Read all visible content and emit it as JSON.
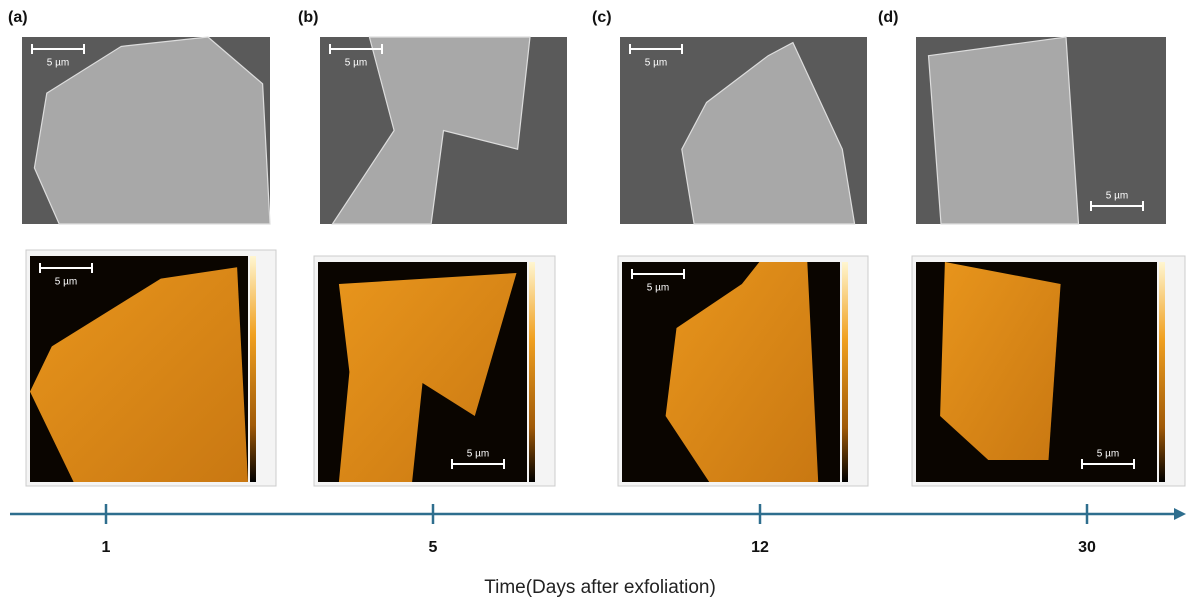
{
  "panels": [
    {
      "label": "(a)",
      "sem_scale": "5 µm",
      "afm_scale": "5 µm"
    },
    {
      "label": "(b)",
      "sem_scale": "5 µm",
      "afm_scale": "5 µm"
    },
    {
      "label": "(c)",
      "sem_scale": "5 µm",
      "afm_scale": "5 µm"
    },
    {
      "label": "(d)",
      "sem_scale": "5 µm",
      "afm_scale": "5 µm"
    }
  ],
  "timeline": {
    "ticks": [
      1,
      5,
      12,
      30
    ],
    "label": "Time(Days after exfoliation)"
  }
}
